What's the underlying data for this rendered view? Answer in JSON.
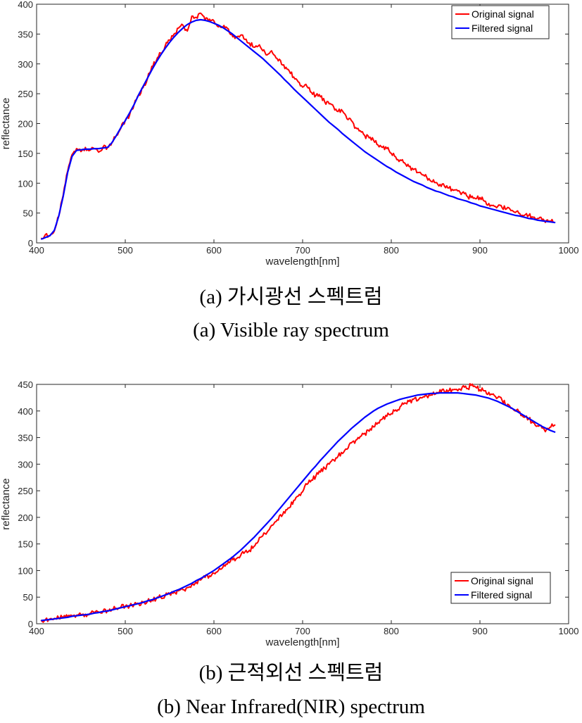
{
  "captions": {
    "a_korean": "(a)  가시광선  스펙트럼",
    "a_english": "(a)  Visible  ray  spectrum",
    "b_korean": "(b)  근적외선  스펙트럼",
    "b_english": "(b)  Near  Infrared(NIR)  spectrum"
  },
  "colors": {
    "original": "#ff0000",
    "filtered": "#0000ff",
    "axis": "#262626"
  },
  "chart_data": [
    {
      "type": "line",
      "xlabel": "wavelength[nm]",
      "ylabel": "reflectance",
      "xlim": [
        400,
        1000
      ],
      "ylim": [
        0,
        400
      ],
      "xticks": [
        400,
        500,
        600,
        700,
        800,
        900,
        1000
      ],
      "yticks": [
        0,
        50,
        100,
        150,
        200,
        250,
        300,
        350,
        400
      ],
      "grid": false,
      "legend_position": "top-right",
      "noise_amplitude": 5,
      "series": [
        {
          "name": "Original signal",
          "color": "#ff0000",
          "x": [
            405,
            410,
            415,
            420,
            425,
            430,
            435,
            440,
            445,
            450,
            455,
            460,
            465,
            470,
            475,
            480,
            485,
            490,
            495,
            500,
            505,
            510,
            515,
            520,
            525,
            530,
            535,
            540,
            545,
            550,
            555,
            560,
            565,
            570,
            575,
            580,
            585,
            590,
            595,
            600,
            605,
            610,
            615,
            620,
            625,
            630,
            635,
            640,
            645,
            650,
            655,
            660,
            665,
            670,
            675,
            680,
            685,
            690,
            695,
            700,
            705,
            710,
            715,
            720,
            725,
            730,
            735,
            740,
            745,
            750,
            755,
            760,
            765,
            770,
            775,
            780,
            785,
            790,
            795,
            800,
            805,
            810,
            815,
            820,
            825,
            830,
            835,
            840,
            845,
            850,
            855,
            860,
            865,
            870,
            875,
            880,
            885,
            890,
            895,
            900,
            905,
            910,
            915,
            920,
            925,
            930,
            935,
            940,
            945,
            950,
            955,
            960,
            965,
            970,
            975,
            980,
            985
          ],
          "y": [
            8,
            14,
            12,
            20,
            45,
            80,
            120,
            148,
            158,
            153,
            160,
            155,
            158,
            152,
            161,
            160,
            168,
            180,
            192,
            205,
            215,
            232,
            248,
            260,
            275,
            296,
            305,
            318,
            330,
            340,
            350,
            360,
            365,
            355,
            380,
            378,
            385,
            373,
            375,
            372,
            362,
            362,
            360,
            350,
            345,
            348,
            341,
            335,
            328,
            330,
            322,
            315,
            322,
            310,
            306,
            292,
            288,
            278,
            270,
            261,
            262,
            252,
            247,
            245,
            236,
            233,
            228,
            220,
            221,
            208,
            205,
            193,
            188,
            180,
            176,
            172,
            164,
            160,
            158,
            150,
            144,
            139,
            134,
            128,
            123,
            118,
            114,
            110,
            103,
            101,
            98,
            95,
            92,
            88,
            87,
            84,
            79,
            76,
            74,
            76,
            70,
            66,
            63,
            61,
            59,
            57,
            54,
            51,
            49,
            46,
            46,
            43,
            41,
            39,
            38,
            36,
            34
          ]
        },
        {
          "name": "Filtered signal",
          "color": "#0000ff",
          "x": [
            405,
            410,
            415,
            420,
            425,
            430,
            435,
            440,
            445,
            450,
            455,
            460,
            465,
            470,
            475,
            480,
            485,
            490,
            495,
            500,
            505,
            510,
            515,
            520,
            525,
            530,
            535,
            540,
            545,
            550,
            555,
            560,
            565,
            570,
            575,
            580,
            585,
            590,
            595,
            600,
            605,
            610,
            615,
            620,
            625,
            630,
            635,
            640,
            645,
            650,
            655,
            660,
            665,
            670,
            675,
            680,
            685,
            690,
            695,
            700,
            705,
            710,
            715,
            720,
            725,
            730,
            735,
            740,
            745,
            750,
            755,
            760,
            765,
            770,
            775,
            780,
            785,
            790,
            795,
            800,
            805,
            810,
            815,
            820,
            825,
            830,
            835,
            840,
            845,
            850,
            855,
            860,
            865,
            870,
            875,
            880,
            885,
            890,
            895,
            900,
            905,
            910,
            915,
            920,
            925,
            930,
            935,
            940,
            945,
            950,
            955,
            960,
            965,
            970,
            975,
            980,
            985
          ],
          "y": [
            6,
            9,
            12,
            21,
            45,
            78,
            118,
            145,
            155,
            156,
            157,
            157,
            158,
            158,
            159,
            160,
            168,
            180,
            193,
            205,
            218,
            232,
            248,
            262,
            276,
            290,
            303,
            315,
            326,
            336,
            345,
            353,
            360,
            366,
            370,
            373,
            374,
            373,
            371,
            368,
            365,
            361,
            356,
            351,
            345,
            339,
            333,
            327,
            321,
            315,
            309,
            302,
            295,
            288,
            281,
            273,
            266,
            258,
            251,
            244,
            237,
            230,
            223,
            216,
            209,
            202,
            196,
            190,
            183,
            177,
            171,
            165,
            159,
            153,
            148,
            143,
            138,
            133,
            128,
            124,
            119,
            115,
            111,
            107,
            103,
            100,
            97,
            93,
            90,
            87,
            85,
            82,
            79,
            77,
            74,
            72,
            70,
            67,
            65,
            62,
            60,
            58,
            56,
            54,
            52,
            50,
            48,
            46,
            45,
            43,
            41,
            40,
            38,
            37,
            36,
            35,
            34
          ]
        }
      ]
    },
    {
      "type": "line",
      "xlabel": "wavelength[nm]",
      "ylabel": "reflectance",
      "xlim": [
        400,
        1000
      ],
      "ylim": [
        0,
        450
      ],
      "xticks": [
        400,
        500,
        600,
        700,
        800,
        900,
        1000
      ],
      "yticks": [
        0,
        50,
        100,
        150,
        200,
        250,
        300,
        350,
        400,
        450
      ],
      "grid": false,
      "legend_position": "bottom-right",
      "noise_amplitude": 6,
      "series": [
        {
          "name": "Original signal",
          "color": "#ff0000",
          "x": [
            405,
            410,
            415,
            420,
            425,
            430,
            435,
            440,
            445,
            450,
            455,
            460,
            465,
            470,
            475,
            480,
            485,
            490,
            495,
            500,
            505,
            510,
            515,
            520,
            525,
            530,
            535,
            540,
            545,
            550,
            555,
            560,
            565,
            570,
            575,
            580,
            585,
            590,
            595,
            600,
            605,
            610,
            615,
            620,
            625,
            630,
            635,
            640,
            645,
            650,
            655,
            660,
            665,
            670,
            675,
            680,
            685,
            690,
            695,
            700,
            705,
            710,
            715,
            720,
            725,
            730,
            735,
            740,
            745,
            750,
            755,
            760,
            765,
            770,
            775,
            780,
            785,
            790,
            795,
            800,
            805,
            810,
            815,
            820,
            825,
            830,
            835,
            840,
            845,
            850,
            855,
            860,
            865,
            870,
            875,
            880,
            885,
            890,
            895,
            900,
            905,
            910,
            915,
            920,
            925,
            930,
            935,
            940,
            945,
            950,
            955,
            960,
            965,
            970,
            975,
            980,
            985
          ],
          "y": [
            7,
            8,
            9,
            10,
            11,
            12,
            13,
            15,
            16,
            17,
            18,
            19,
            21,
            22,
            24,
            25,
            27,
            29,
            31,
            33,
            34,
            36,
            38,
            40,
            42,
            45,
            47,
            50,
            53,
            56,
            59,
            62,
            64,
            68,
            73,
            78,
            82,
            87,
            90,
            95,
            100,
            106,
            112,
            125,
            122,
            128,
            135,
            138,
            145,
            155,
            165,
            172,
            185,
            192,
            205,
            208,
            218,
            232,
            240,
            248,
            262,
            270,
            278,
            285,
            292,
            300,
            308,
            315,
            320,
            328,
            340,
            345,
            352,
            358,
            362,
            370,
            378,
            385,
            390,
            395,
            402,
            408,
            415,
            418,
            422,
            420,
            425,
            428,
            430,
            432,
            440,
            436,
            438,
            440,
            438,
            445,
            442,
            448,
            445,
            440,
            438,
            435,
            432,
            425,
            420,
            410,
            405,
            400,
            398,
            388,
            385,
            378,
            372,
            368,
            365,
            370,
            374
          ]
        },
        {
          "name": "Filtered signal",
          "color": "#0000ff",
          "x": [
            405,
            410,
            415,
            420,
            425,
            430,
            435,
            440,
            445,
            450,
            455,
            460,
            465,
            470,
            475,
            480,
            485,
            490,
            495,
            500,
            505,
            510,
            515,
            520,
            525,
            530,
            535,
            540,
            545,
            550,
            555,
            560,
            565,
            570,
            575,
            580,
            585,
            590,
            595,
            600,
            605,
            610,
            615,
            620,
            625,
            630,
            635,
            640,
            645,
            650,
            655,
            660,
            665,
            670,
            675,
            680,
            685,
            690,
            695,
            700,
            705,
            710,
            715,
            720,
            725,
            730,
            735,
            740,
            745,
            750,
            755,
            760,
            765,
            770,
            775,
            780,
            785,
            790,
            795,
            800,
            805,
            810,
            815,
            820,
            825,
            830,
            835,
            840,
            845,
            850,
            855,
            860,
            865,
            870,
            875,
            880,
            885,
            890,
            895,
            900,
            905,
            910,
            915,
            920,
            925,
            930,
            935,
            940,
            945,
            950,
            955,
            960,
            965,
            970,
            975,
            980,
            985
          ],
          "y": [
            6,
            7,
            8,
            9,
            10,
            11,
            12,
            14,
            15,
            16,
            17,
            18,
            20,
            21,
            23,
            24,
            26,
            28,
            30,
            32,
            34,
            36,
            38,
            40,
            43,
            45,
            48,
            51,
            54,
            57,
            61,
            64,
            68,
            72,
            76,
            81,
            85,
            90,
            95,
            100,
            106,
            112,
            118,
            124,
            131,
            138,
            146,
            154,
            162,
            171,
            180,
            189,
            198,
            208,
            218,
            228,
            238,
            248,
            258,
            268,
            278,
            288,
            297,
            307,
            316,
            325,
            334,
            343,
            351,
            359,
            367,
            374,
            381,
            388,
            394,
            400,
            405,
            409,
            413,
            416,
            419,
            422,
            424,
            426,
            428,
            430,
            431,
            432,
            433,
            433,
            434,
            434,
            434,
            434,
            434,
            433,
            432,
            431,
            430,
            428,
            426,
            424,
            421,
            418,
            414,
            410,
            406,
            401,
            396,
            391,
            386,
            381,
            376,
            371,
            367,
            363,
            360
          ]
        }
      ]
    }
  ]
}
